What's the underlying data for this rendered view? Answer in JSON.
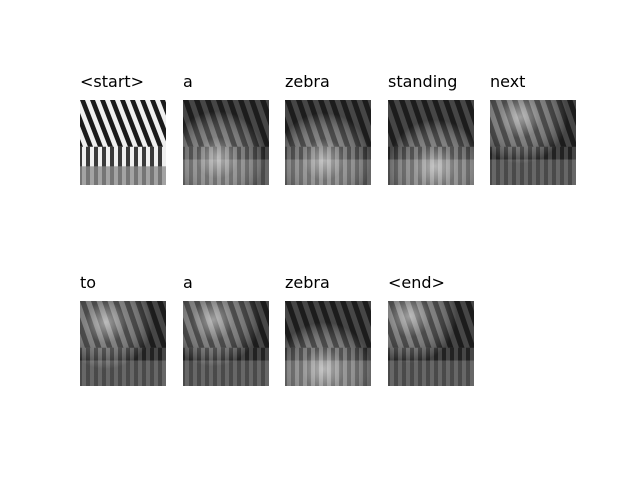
{
  "figure": {
    "tokens": [
      {
        "word": "<start>",
        "mode": "original",
        "focus": [
          0.5,
          0.5
        ]
      },
      {
        "word": "a",
        "mode": "attention",
        "focus": [
          0.4,
          0.68
        ]
      },
      {
        "word": "zebra",
        "mode": "attention",
        "focus": [
          0.45,
          0.7
        ]
      },
      {
        "word": "standing",
        "mode": "attention",
        "focus": [
          0.55,
          0.78
        ]
      },
      {
        "word": "next",
        "mode": "attention",
        "focus": [
          0.35,
          0.2
        ]
      },
      {
        "word": "to",
        "mode": "attention",
        "focus": [
          0.3,
          0.25
        ]
      },
      {
        "word": "a",
        "mode": "attention",
        "focus": [
          0.35,
          0.22
        ]
      },
      {
        "word": "zebra",
        "mode": "attention",
        "focus": [
          0.45,
          0.8
        ]
      },
      {
        "word": "<end>",
        "mode": "attention",
        "focus": [
          0.25,
          0.18
        ]
      }
    ],
    "colors": {
      "background": "#ffffff",
      "text": "#000000",
      "stripe_dark": "#1a1a1a",
      "stripe_light": "#efefef"
    }
  }
}
